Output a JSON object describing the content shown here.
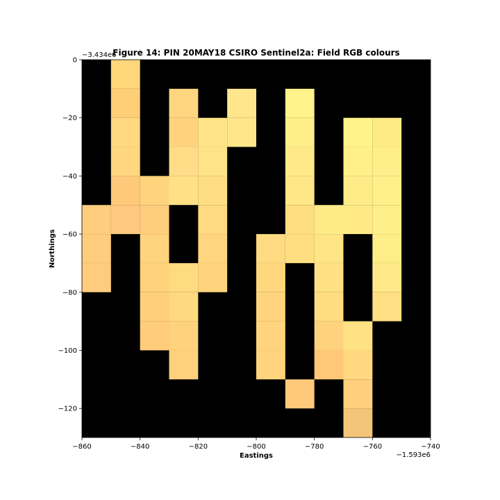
{
  "chart_data": {
    "type": "heatmap",
    "title": "Figure 14: PIN 20MAY18 CSIRO Sentinel2a: Field RGB colours",
    "xlabel": "Eastings",
    "ylabel": "Northings",
    "x_offset_label": "−1.593e6",
    "y_offset_label": "−3.434e6",
    "xlim": [
      -860,
      -740
    ],
    "ylim": [
      -130,
      0
    ],
    "x_ticks": [
      -860,
      -840,
      -820,
      -800,
      -780,
      -760,
      -740
    ],
    "x_tick_labels": [
      "−860",
      "−840",
      "−820",
      "−800",
      "−780",
      "−760",
      "−740"
    ],
    "y_ticks": [
      0,
      -20,
      -40,
      -60,
      -80,
      -100,
      -120
    ],
    "y_tick_labels": [
      "0",
      "−20",
      "−40",
      "−60",
      "−80",
      "−100",
      "−120"
    ],
    "grid": false,
    "cell_size": 10,
    "background_color": "#000000",
    "cells": [
      {
        "x": -850,
        "y": 0,
        "color": "#ffd67a"
      },
      {
        "x": -850,
        "y": -10,
        "color": "#ffcf78"
      },
      {
        "x": -850,
        "y": -20,
        "color": "#ffd880"
      },
      {
        "x": -850,
        "y": -30,
        "color": "#ffd77f"
      },
      {
        "x": -850,
        "y": -40,
        "color": "#ffc97c"
      },
      {
        "x": -850,
        "y": -50,
        "color": "#ffca80"
      },
      {
        "x": -860,
        "y": -50,
        "color": "#ffcd7e"
      },
      {
        "x": -860,
        "y": -60,
        "color": "#ffcd7e"
      },
      {
        "x": -860,
        "y": -70,
        "color": "#ffcc7d"
      },
      {
        "x": -840,
        "y": -40,
        "color": "#ffd47c"
      },
      {
        "x": -840,
        "y": -50,
        "color": "#ffcd7e"
      },
      {
        "x": -840,
        "y": -60,
        "color": "#ffd47e"
      },
      {
        "x": -840,
        "y": -70,
        "color": "#ffd37c"
      },
      {
        "x": -840,
        "y": -80,
        "color": "#ffcf7b"
      },
      {
        "x": -840,
        "y": -90,
        "color": "#ffcc7c"
      },
      {
        "x": -830,
        "y": -10,
        "color": "#ffd680"
      },
      {
        "x": -830,
        "y": -20,
        "color": "#ffd27e"
      },
      {
        "x": -830,
        "y": -30,
        "color": "#ffdd88"
      },
      {
        "x": -830,
        "y": -40,
        "color": "#ffe085"
      },
      {
        "x": -830,
        "y": -70,
        "color": "#ffdb80"
      },
      {
        "x": -830,
        "y": -80,
        "color": "#ffd97f"
      },
      {
        "x": -830,
        "y": -90,
        "color": "#ffd27d"
      },
      {
        "x": -830,
        "y": -100,
        "color": "#ffd17c"
      },
      {
        "x": -820,
        "y": -20,
        "color": "#ffe487"
      },
      {
        "x": -820,
        "y": -30,
        "color": "#ffe387"
      },
      {
        "x": -820,
        "y": -40,
        "color": "#ffdd83"
      },
      {
        "x": -820,
        "y": -50,
        "color": "#ffda80"
      },
      {
        "x": -820,
        "y": -60,
        "color": "#ffd67f"
      },
      {
        "x": -820,
        "y": -70,
        "color": "#ffd47d"
      },
      {
        "x": -810,
        "y": -10,
        "color": "#ffe68c"
      },
      {
        "x": -810,
        "y": -20,
        "color": "#ffe68a"
      },
      {
        "x": -790,
        "y": -10,
        "color": "#fff28a"
      },
      {
        "x": -790,
        "y": -20,
        "color": "#ffee8a"
      },
      {
        "x": -790,
        "y": -30,
        "color": "#ffe988"
      },
      {
        "x": -790,
        "y": -40,
        "color": "#ffe686"
      },
      {
        "x": -790,
        "y": -50,
        "color": "#ffde82"
      },
      {
        "x": -790,
        "y": -60,
        "color": "#ffde81"
      },
      {
        "x": -800,
        "y": -60,
        "color": "#ffda80"
      },
      {
        "x": -800,
        "y": -70,
        "color": "#ffd87e"
      },
      {
        "x": -800,
        "y": -80,
        "color": "#ffd47d"
      },
      {
        "x": -800,
        "y": -90,
        "color": "#ffd47d"
      },
      {
        "x": -800,
        "y": -100,
        "color": "#ffd47c"
      },
      {
        "x": -790,
        "y": -110,
        "color": "#ffc87a"
      },
      {
        "x": -780,
        "y": -50,
        "color": "#ffea88"
      },
      {
        "x": -780,
        "y": -60,
        "color": "#ffe585"
      },
      {
        "x": -780,
        "y": -70,
        "color": "#ffe183"
      },
      {
        "x": -780,
        "y": -80,
        "color": "#ffdc80"
      },
      {
        "x": -780,
        "y": -90,
        "color": "#ffd37d"
      },
      {
        "x": -780,
        "y": -100,
        "color": "#ffc878"
      },
      {
        "x": -770,
        "y": -20,
        "color": "#fff48a"
      },
      {
        "x": -770,
        "y": -30,
        "color": "#fff08a"
      },
      {
        "x": -770,
        "y": -40,
        "color": "#ffec88"
      },
      {
        "x": -770,
        "y": -50,
        "color": "#ffea86"
      },
      {
        "x": -770,
        "y": -90,
        "color": "#ffe283"
      },
      {
        "x": -770,
        "y": -100,
        "color": "#ffd880"
      },
      {
        "x": -770,
        "y": -110,
        "color": "#ffcf7d"
      },
      {
        "x": -770,
        "y": -120,
        "color": "#f3c578"
      },
      {
        "x": -760,
        "y": -20,
        "color": "#ffea88"
      },
      {
        "x": -760,
        "y": -30,
        "color": "#ffee8a"
      },
      {
        "x": -760,
        "y": -40,
        "color": "#fff08a"
      },
      {
        "x": -760,
        "y": -50,
        "color": "#ffef8a"
      },
      {
        "x": -760,
        "y": -60,
        "color": "#ffed88"
      },
      {
        "x": -760,
        "y": -70,
        "color": "#ffe988"
      },
      {
        "x": -760,
        "y": -80,
        "color": "#ffdf84"
      }
    ]
  }
}
